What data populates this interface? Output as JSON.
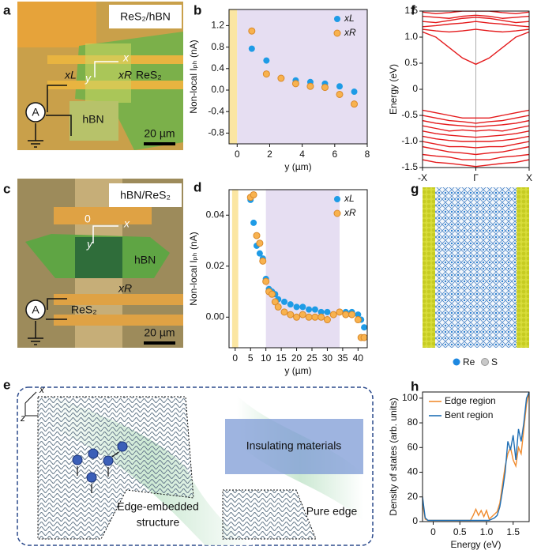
{
  "panels": {
    "a": {
      "label": "a",
      "tag": "ReS₂/hBN",
      "axis_x": "x",
      "axis_y": "y",
      "probe_left": "xL",
      "probe_right": "xR",
      "material_top": "ReS₂",
      "ammeter": "A",
      "material_bottom": "hBN",
      "scale_bar": "20 µm"
    },
    "c": {
      "label": "c",
      "tag": "hBN/ReS₂",
      "origin": "0",
      "axis_x": "x",
      "axis_y": "y",
      "material_top": "hBN",
      "probe_right": "xR",
      "ammeter": "A",
      "material_bottom": "ReS₂",
      "scale_bar": "20 µm"
    },
    "e": {
      "label": "e",
      "axis_x": "x",
      "axis_z": "z",
      "insulator": "Insulating materials",
      "embedded": [
        "Edge-embedded",
        "structure"
      ],
      "pure": "Pure edge"
    },
    "g": {
      "label": "g",
      "legend": [
        "Re",
        "S"
      ]
    }
  },
  "chart_data": [
    {
      "panel_label": "b",
      "type": "scatter",
      "xlabel": "y (µm)",
      "ylabel": "Non-local Iₚₕ (nA)",
      "x": [
        0.9,
        1.8,
        2.7,
        3.6,
        4.5,
        5.4,
        6.3,
        7.2
      ],
      "series": [
        {
          "name": "xL",
          "color": "#1e9be6",
          "values": [
            0.77,
            0.55,
            0.22,
            0.18,
            0.15,
            0.12,
            0.07,
            -0.03
          ]
        },
        {
          "name": "xR",
          "color": "#f8b24e",
          "edgecolor": "#d9892a",
          "values": [
            1.1,
            0.3,
            0.22,
            0.12,
            0.07,
            0.05,
            -0.08,
            -0.26
          ]
        }
      ],
      "xlim": [
        -0.5,
        8
      ],
      "xticks": [
        0,
        2,
        4,
        6,
        8
      ],
      "ylim": [
        -1,
        1.5
      ],
      "yticks": [
        -0.8,
        -0.4,
        {
          "value": 0,
          "label": "0.0"
        },
        0.4,
        0.8,
        1.2
      ],
      "regions": [
        {
          "from": -0.5,
          "to": 0,
          "color": "#fbe6a2"
        },
        {
          "from": 0,
          "to": 8,
          "color": "#e6def2"
        }
      ],
      "legend": "upper right"
    },
    {
      "panel_label": "d",
      "type": "scatter",
      "xlabel": "y (µm)",
      "ylabel": "Non-local Iₚₕ (nA)",
      "x": [
        5,
        6,
        7,
        8,
        9,
        10,
        11,
        12,
        13,
        14,
        16,
        18,
        20,
        22,
        24,
        26,
        28,
        30,
        32,
        34,
        36,
        38,
        40,
        41,
        42
      ],
      "series": [
        {
          "name": "xL",
          "color": "#1e9be6",
          "values": [
            0.046,
            0.037,
            0.028,
            0.025,
            0.023,
            0.015,
            0.011,
            0.01,
            0.009,
            0.007,
            0.006,
            0.005,
            0.004,
            0.004,
            0.003,
            0.003,
            0.002,
            0.002,
            0.001,
            0.002,
            0.002,
            0.002,
            0.001,
            -0.001,
            -0.004
          ]
        },
        {
          "name": "xR",
          "color": "#f8b24e",
          "edgecolor": "#d9892a",
          "values": [
            0.047,
            0.048,
            0.032,
            0.029,
            0.022,
            0.014,
            0.01,
            0.009,
            0.006,
            0.004,
            0.002,
            0.001,
            0,
            0.001,
            0,
            0,
            0,
            -0.001,
            0.001,
            0.002,
            0.001,
            0.001,
            -0.001,
            -0.008,
            -0.008
          ]
        }
      ],
      "xlim": [
        -2,
        43
      ],
      "xticks": [
        0,
        5,
        10,
        15,
        20,
        25,
        30,
        35,
        40
      ],
      "ylim": [
        -0.012,
        0.05
      ],
      "yticks": [
        {
          "value": 0,
          "label": "0.00"
        },
        {
          "value": 0.02,
          "label": "0.02"
        },
        {
          "value": 0.04,
          "label": "0.04"
        }
      ],
      "regions": [
        {
          "from": -1,
          "to": 1,
          "color": "#fbe6a2"
        },
        {
          "from": 10,
          "to": 34,
          "color": "#e6def2"
        }
      ],
      "legend": "upper right"
    },
    {
      "panel_label": "f",
      "type": "line",
      "ylabel": "Energy (eV)",
      "color": "#e41a1c",
      "x": [
        -1,
        -0.75,
        -0.5,
        -0.25,
        0,
        0.25,
        0.5,
        0.75,
        1
      ],
      "series": [
        {
          "values": [
            1.1,
            1.0,
            0.8,
            0.6,
            0.48,
            0.6,
            0.8,
            1.0,
            1.1
          ]
        },
        {
          "values": [
            1.15,
            1.12,
            1.1,
            1.12,
            1.15,
            1.12,
            1.1,
            1.12,
            1.15
          ]
        },
        {
          "values": [
            1.2,
            1.22,
            1.25,
            1.27,
            1.3,
            1.27,
            1.25,
            1.22,
            1.2
          ]
        },
        {
          "values": [
            1.3,
            1.28,
            1.32,
            1.36,
            1.38,
            1.36,
            1.32,
            1.28,
            1.3
          ]
        },
        {
          "values": [
            1.4,
            1.38,
            1.36,
            1.4,
            1.42,
            1.4,
            1.36,
            1.38,
            1.4
          ]
        },
        {
          "values": [
            1.48,
            1.45,
            1.47,
            1.5,
            1.5,
            1.5,
            1.47,
            1.45,
            1.48
          ]
        },
        {
          "values": [
            -0.4,
            -0.45,
            -0.5,
            -0.55,
            -0.55,
            -0.55,
            -0.5,
            -0.45,
            -0.4
          ]
        },
        {
          "values": [
            -0.5,
            -0.55,
            -0.6,
            -0.62,
            -0.65,
            -0.62,
            -0.6,
            -0.55,
            -0.5
          ]
        },
        {
          "values": [
            -0.6,
            -0.65,
            -0.68,
            -0.7,
            -0.72,
            -0.7,
            -0.68,
            -0.65,
            -0.6
          ]
        },
        {
          "values": [
            -0.7,
            -0.75,
            -0.8,
            -0.78,
            -0.8,
            -0.78,
            -0.8,
            -0.75,
            -0.7
          ]
        },
        {
          "values": [
            -0.8,
            -0.85,
            -0.88,
            -0.9,
            -0.92,
            -0.9,
            -0.88,
            -0.85,
            -0.8
          ]
        },
        {
          "values": [
            -0.9,
            -0.95,
            -0.98,
            -1.0,
            -1.0,
            -1.0,
            -0.98,
            -0.95,
            -0.9
          ]
        },
        {
          "values": [
            -1.0,
            -1.05,
            -1.1,
            -1.1,
            -1.12,
            -1.1,
            -1.1,
            -1.05,
            -1.0
          ]
        },
        {
          "values": [
            -1.1,
            -1.15,
            -1.2,
            -1.22,
            -1.25,
            -1.22,
            -1.2,
            -1.15,
            -1.1
          ]
        },
        {
          "values": [
            -1.25,
            -1.28,
            -1.3,
            -1.35,
            -1.35,
            -1.35,
            -1.3,
            -1.28,
            -1.25
          ]
        },
        {
          "values": [
            -1.35,
            -1.4,
            -1.42,
            -1.45,
            -1.48,
            -1.45,
            -1.42,
            -1.4,
            -1.35
          ]
        }
      ],
      "xlim": [
        -1,
        1
      ],
      "xticks": [
        {
          "value": -1,
          "label": "-X"
        },
        {
          "value": 0,
          "label": "Γ"
        },
        {
          "value": 1,
          "label": "X"
        }
      ],
      "ylim": [
        -1.5,
        1.5
      ],
      "yticks": [
        -1.5,
        {
          "value": -1,
          "label": "-1.0"
        },
        -0.5,
        0,
        0.5,
        {
          "value": 1,
          "label": "1.0"
        },
        1.5
      ],
      "grid_x": true
    },
    {
      "panel_label": "h",
      "type": "line",
      "xlabel": "Energy (eV)",
      "ylabel": "Density of states (arb. units)",
      "x": [
        -0.2,
        -0.15,
        -0.1,
        0,
        0.5,
        0.7,
        0.75,
        0.8,
        0.85,
        0.9,
        0.95,
        1.0,
        1.05,
        1.1,
        1.15,
        1.2,
        1.25,
        1.3,
        1.35,
        1.4,
        1.45,
        1.5,
        1.55,
        1.6,
        1.65,
        1.7,
        1.75,
        1.8
      ],
      "series": [
        {
          "name": "Edge region",
          "color": "#f08c30",
          "values": [
            15,
            2,
            1,
            1,
            1,
            1,
            5,
            10,
            5,
            9,
            4,
            9,
            2,
            4,
            6,
            8,
            15,
            30,
            45,
            55,
            60,
            50,
            45,
            60,
            55,
            75,
            95,
            105
          ]
        },
        {
          "name": "Bent region",
          "color": "#1f6fb5",
          "values": [
            20,
            3,
            1,
            1,
            1,
            1,
            1,
            1,
            1,
            1,
            1,
            1,
            1,
            2,
            3,
            5,
            12,
            25,
            40,
            65,
            58,
            70,
            50,
            75,
            65,
            80,
            100,
            105
          ]
        }
      ],
      "xlim": [
        -0.2,
        1.8
      ],
      "xticks": [
        0,
        0.5,
        {
          "value": 1,
          "label": "1.0"
        },
        1.5
      ],
      "ylim": [
        0,
        105
      ],
      "yticks": [
        0,
        20,
        40,
        60,
        80,
        100
      ],
      "legend": "upper left"
    }
  ]
}
